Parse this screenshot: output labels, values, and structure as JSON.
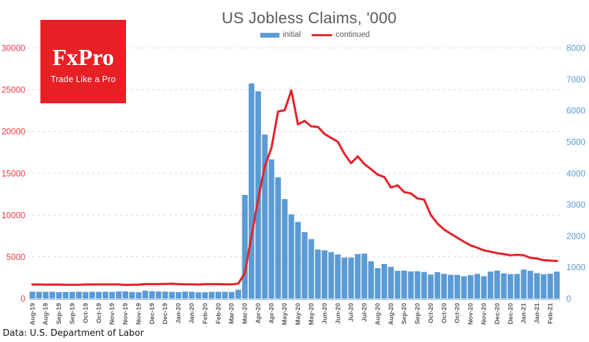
{
  "header": {
    "title": "US Jobless Claims, '000"
  },
  "legend": [
    {
      "label": "initial",
      "color": "#5B9BD5",
      "marker": "bar"
    },
    {
      "label": "continued",
      "color": "#E2242B",
      "marker": "line"
    }
  ],
  "logo": {
    "brand": "FxPro",
    "tagline": "Trade Like a Pro",
    "bg_color": "#E72026",
    "text_color": "#FFFFFF"
  },
  "footer": {
    "source": "Data: U.S. Department of Labor"
  },
  "chart_data": {
    "type": "bar",
    "title": "US Jobless Claims, '000",
    "unit": "thousands of claims, weekly",
    "grid": "horizontal-dashed",
    "legend_position": "top-center",
    "x_label_every": 2,
    "x_tick_labels": [
      "Aug-19",
      "Aug-19",
      "Sep-19",
      "Sep-19",
      "Oct-19",
      "Oct-19",
      "Nov-19",
      "Nov-19",
      "Nov-19",
      "Dec-19",
      "Dec-19",
      "Jan-20",
      "Jan-20",
      "Feb-20",
      "Feb-20",
      "Mar-20",
      "Mar-20",
      "Apr-20",
      "Apr-20",
      "May-20",
      "May-20",
      "May-20",
      "Jun-20",
      "Jun-20",
      "Jul-20",
      "Jul-20",
      "Aug-20",
      "Aug-20",
      "Sep-20",
      "Sep-20",
      "Oct-20",
      "Oct-20",
      "Oct-20",
      "Nov-20",
      "Nov-20",
      "Dec-20",
      "Dec-20",
      "Jan-21",
      "Jan-21",
      "Feb-21"
    ],
    "left_axis": {
      "series": "continued",
      "color": "#EE3B43",
      "min": 0,
      "max": 30000,
      "step": 5000,
      "tick_labels": [
        "0",
        "5000",
        "10000",
        "15000",
        "20000",
        "25000",
        "30000"
      ]
    },
    "right_axis": {
      "series": "initial",
      "color": "#5B9BD5",
      "min": 0,
      "max": 8000,
      "step": 1000,
      "tick_labels": [
        "0",
        "1000",
        "2000",
        "3000",
        "4000",
        "5000",
        "6000",
        "7000",
        "8000"
      ]
    },
    "series": [
      {
        "name": "initial",
        "type": "bar",
        "axis": "right",
        "color": "#5B9BD5",
        "values": [
          221,
          217,
          216,
          219,
          206,
          210,
          215,
          220,
          212,
          218,
          213,
          218,
          211,
          227,
          228,
          213,
          203,
          252,
          235,
          224,
          223,
          214,
          207,
          223,
          217,
          201,
          204,
          215,
          219,
          217,
          211,
          282,
          3307,
          6867,
          6615,
          5237,
          4442,
          3867,
          3176,
          2687,
          2446,
          2123,
          1897,
          1566,
          1540,
          1482,
          1408,
          1310,
          1308,
          1422,
          1435,
          1191,
          971,
          1104,
          1011,
          884,
          893,
          866,
          873,
          849,
          767,
          842,
          791,
          758,
          757,
          711,
          748,
          787,
          716,
          862,
          892,
          806,
          782,
          784,
          926,
          886,
          812,
          779,
          793,
          861
        ]
      },
      {
        "name": "continued",
        "type": "line",
        "axis": "left",
        "color": "#E2242B",
        "values": [
          1674,
          1691,
          1662,
          1674,
          1667,
          1656,
          1651,
          1655,
          1684,
          1683,
          1691,
          1692,
          1693,
          1697,
          1640,
          1656,
          1671,
          1725,
          1726,
          1728,
          1745,
          1767,
          1731,
          1703,
          1702,
          1678,
          1718,
          1726,
          1722,
          1699,
          1702,
          1784,
          3059,
          7446,
          11914,
          15819,
          18011,
          22377,
          22548,
          24912,
          20841,
          21268,
          20606,
          20544,
          19695,
          19231,
          18760,
          17304,
          16197,
          17018,
          16107,
          15486,
          14844,
          14535,
          13292,
          13544,
          12747,
          12580,
          11979,
          11843,
          10018,
          8983,
          8262,
          7756,
          7285,
          6801,
          6370,
          6089,
          5767,
          5614,
          5433,
          5322,
          5180,
          5240,
          5181,
          4878,
          4785,
          4592,
          4545,
          4494
        ]
      }
    ]
  }
}
